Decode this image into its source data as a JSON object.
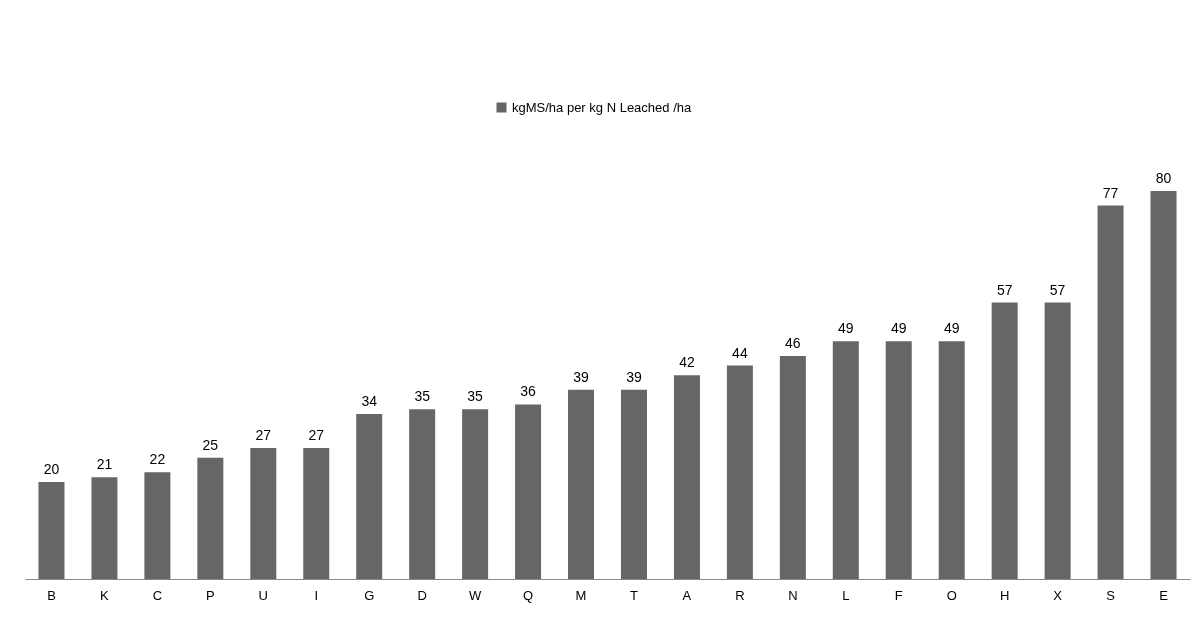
{
  "chart_data": {
    "type": "bar",
    "categories": [
      "B",
      "K",
      "C",
      "P",
      "U",
      "I",
      "G",
      "D",
      "W",
      "Q",
      "M",
      "T",
      "A",
      "R",
      "N",
      "L",
      "F",
      "O",
      "H",
      "X",
      "S",
      "E"
    ],
    "series": [
      {
        "name": "kgMS/ha per kg N Leached /ha",
        "color": "#666666",
        "values": [
          20,
          21,
          22,
          25,
          27,
          27,
          34,
          35,
          35,
          36,
          39,
          39,
          42,
          44,
          46,
          49,
          49,
          49,
          57,
          57,
          77,
          80
        ]
      }
    ],
    "data_labels": true,
    "legend": "top",
    "grid": false
  }
}
